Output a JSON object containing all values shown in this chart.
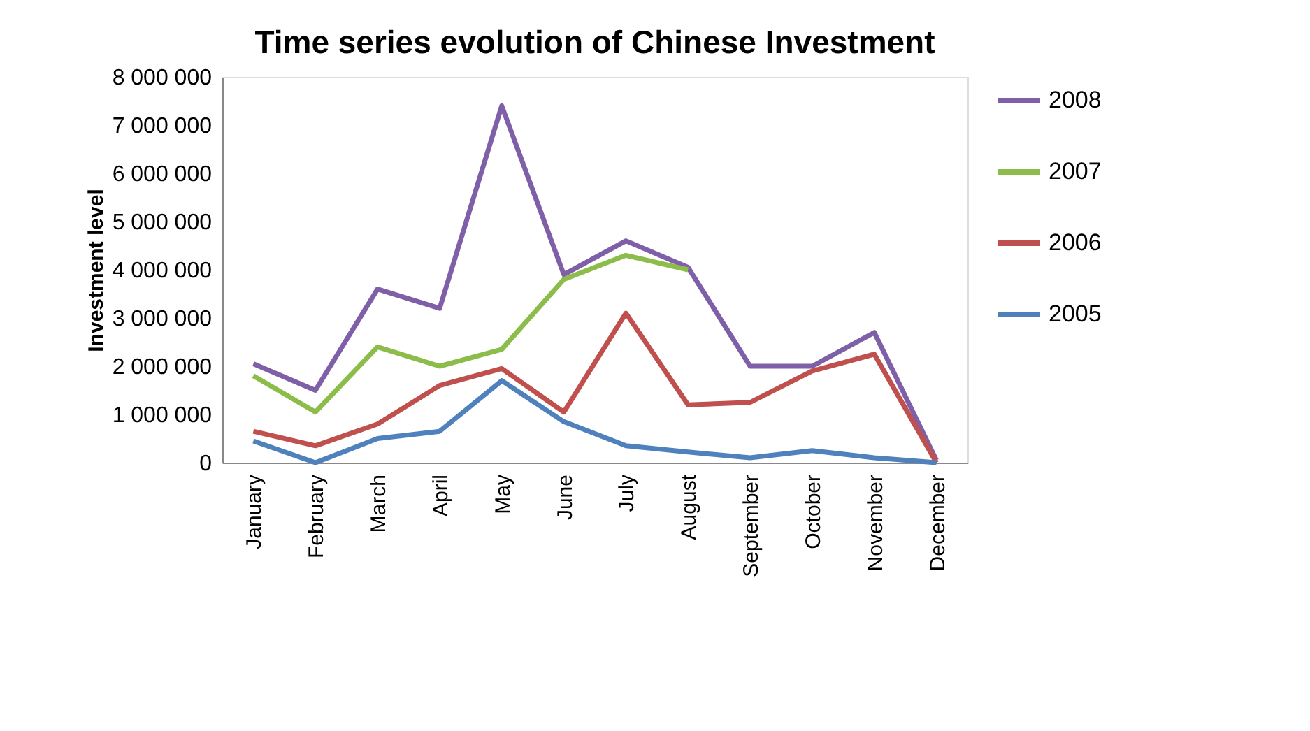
{
  "chart_data": {
    "type": "line",
    "title": "Time series evolution of Chinese  Investment",
    "ylabel": "Investment level",
    "categories": [
      "January",
      "February",
      "March",
      "April",
      "May",
      "June",
      "July",
      "August",
      "September",
      "October",
      "November",
      "December"
    ],
    "series": [
      {
        "name": "2008",
        "color": "#7f60a8",
        "values": [
          2050000,
          1500000,
          3600000,
          3200000,
          7400000,
          3900000,
          4600000,
          4050000,
          2000000,
          2000000,
          2700000,
          50000
        ]
      },
      {
        "name": "2007",
        "color": "#8cbd4a",
        "values": [
          1800000,
          1050000,
          2400000,
          2000000,
          2350000,
          3800000,
          4300000,
          4000000,
          null,
          null,
          null,
          null
        ]
      },
      {
        "name": "2006",
        "color": "#c0504d",
        "values": [
          650000,
          350000,
          800000,
          1600000,
          1950000,
          1050000,
          3100000,
          1200000,
          1250000,
          1900000,
          2250000,
          0
        ]
      },
      {
        "name": "2005",
        "color": "#4f81bd",
        "values": [
          450000,
          0,
          500000,
          650000,
          1700000,
          850000,
          350000,
          220000,
          100000,
          250000,
          100000,
          0
        ]
      }
    ],
    "ylim": [
      0,
      8000000
    ],
    "yticks": [
      0,
      {
        "value": 1000000,
        "label": "1 000 000"
      },
      {
        "value": 2000000,
        "label": "2 000 000"
      },
      {
        "value": 3000000,
        "label": "3 000 000"
      },
      {
        "value": 4000000,
        "label": "4 000 000"
      },
      {
        "value": 5000000,
        "label": "5 000 000"
      },
      {
        "value": 6000000,
        "label": "6 000 000"
      },
      {
        "value": 7000000,
        "label": "7 000 000"
      },
      {
        "value": 8000000,
        "label": "8 000 000"
      }
    ],
    "grid": false,
    "legend": "right",
    "marker": "none",
    "line_style": "solid"
  }
}
